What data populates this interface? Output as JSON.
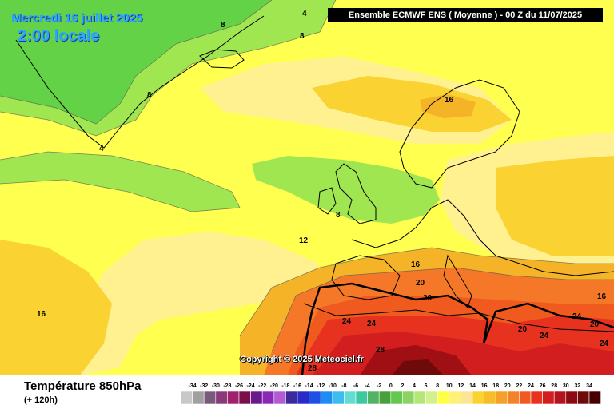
{
  "header": {
    "date": "Mercredi 16 juillet 2025",
    "local_time": "2:00 locale",
    "model_run": "Ensemble ECMWF ENS  ( Moyenne )  -  00 Z du 11/07/2025"
  },
  "footer": {
    "variable": "Température 850hPa",
    "lead_time": "(+ 120h)",
    "copyright": "Copyright © 2025 Meteociel.fr"
  },
  "legend": {
    "ticks": [
      "-34",
      "-32",
      "-30",
      "-28",
      "-26",
      "-24",
      "-22",
      "-20",
      "-18",
      "-16",
      "-14",
      "-12",
      "-10",
      "-8",
      "-6",
      "-4",
      "-2",
      "0",
      "2",
      "4",
      "6",
      "8",
      "10",
      "12",
      "14",
      "16",
      "18",
      "20",
      "22",
      "24",
      "26",
      "28",
      "30",
      "32",
      "34"
    ],
    "colors": [
      "#c8c8c8",
      "#a0a0a0",
      "#7a5a7a",
      "#8a3a78",
      "#a0226e",
      "#7a0f4a",
      "#6a1a8c",
      "#8a2ab4",
      "#b45ad2",
      "#3c2a9c",
      "#2a2ac8",
      "#1e50e6",
      "#1e8cf0",
      "#3cbcf0",
      "#64dcd2",
      "#3cc8a0",
      "#50b464",
      "#46a03c",
      "#64c850",
      "#8cd264",
      "#b4e678",
      "#d2f08c",
      "#ffff46",
      "#fff07a",
      "#fae696",
      "#fad232",
      "#f5be28",
      "#f5a028",
      "#f58228",
      "#f05a1e",
      "#e6321e",
      "#d21e1e",
      "#b4141e",
      "#8c0a14",
      "#6e0a0a",
      "#460000",
      "#1e0000"
    ]
  },
  "contour_labels": [
    "4",
    "8",
    "8",
    "8",
    "4",
    "16",
    "8",
    "12",
    "16",
    "20",
    "20",
    "16",
    "24",
    "24",
    "28",
    "28",
    "20",
    "24",
    "24",
    "24",
    "20",
    "16"
  ],
  "colors": {
    "c4": "#64d246",
    "c8": "#a0e650",
    "c10": "#e6f064",
    "c12": "#ffff50",
    "c14": "#fff090",
    "c16": "#fad232",
    "c18": "#f5b428",
    "c20": "#f57828",
    "c22": "#f05a1e",
    "c24": "#e6321e",
    "c26": "#d21e1e",
    "c28": "#a00f14",
    "c30": "#6e0a0a"
  }
}
